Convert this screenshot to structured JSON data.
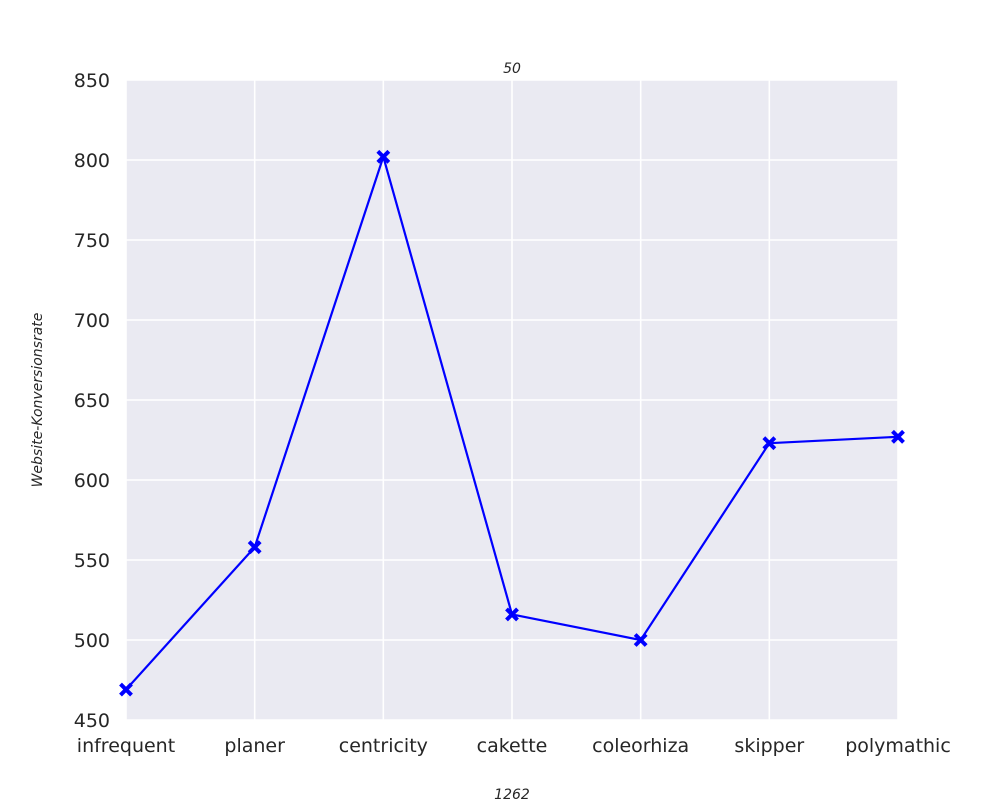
{
  "chart_data": {
    "type": "line",
    "title": "50",
    "xlabel": "1262",
    "ylabel": "Website-Konversionsrate",
    "categories": [
      "infrequent",
      "planer",
      "centricity",
      "cakette",
      "coleorhiza",
      "skipper",
      "polymathic"
    ],
    "series": [
      {
        "values": [
          469,
          558,
          802,
          516,
          500,
          623,
          627
        ]
      }
    ],
    "ylim": [
      450,
      850
    ],
    "yticks": [
      450,
      500,
      550,
      600,
      650,
      700,
      750,
      800,
      850
    ],
    "grid": true,
    "line_color": "#0000ff",
    "marker": "x",
    "background_color": "#eaeaf2",
    "grid_color": "#ffffff"
  }
}
